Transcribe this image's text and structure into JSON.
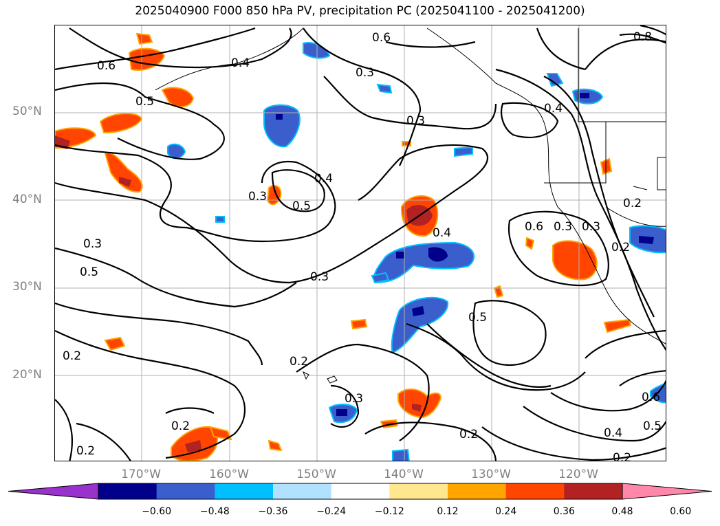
{
  "title": "2025040900 F000 850 hPa PV, precipitation PC (2025041100 - 2025041200)",
  "latitude_labels": [
    "50°N",
    "40°N",
    "30°N",
    "20°N"
  ],
  "longitude_labels": [
    "170°W",
    "160°W",
    "150°W",
    "140°W",
    "130°W",
    "120°W"
  ],
  "colorbar": {
    "ticks": [
      "−0.60",
      "−0.48",
      "−0.36",
      "−0.24",
      "−0.12",
      "0.12",
      "0.24",
      "0.36",
      "0.48",
      "0.60"
    ],
    "colors": [
      "#9932cc",
      "#00008b",
      "#3a5fcd",
      "#00bfff",
      "#b0e2ff",
      "#ffffff",
      "#ffe78f",
      "#ffa500",
      "#ff4500",
      "#b22222",
      "#ff88aa"
    ]
  },
  "contour_labels": [
    "0.6",
    "0.4",
    "0.3",
    "0.5",
    "0.4",
    "0.5",
    "0.3",
    "0.8",
    "0.6",
    "0.3",
    "0.2",
    "0.4",
    "0.3",
    "0.5",
    "0.4",
    "0.3",
    "0.6",
    "0.3",
    "0.3",
    "0.2",
    "0.5",
    "0.2",
    "0.2",
    "0.3",
    "0.2",
    "0.2",
    "0.4",
    "0.5",
    "0.2",
    "0.6",
    "0.2"
  ],
  "colors": {
    "negative_dark": "#00008b",
    "negative_mid": "#3a5fcd",
    "negative_light": "#00bfff",
    "positive_light": "#ffa500",
    "positive_mid": "#ff4500",
    "positive_dark": "#b22222",
    "positive_faint": "#ffe78f"
  }
}
